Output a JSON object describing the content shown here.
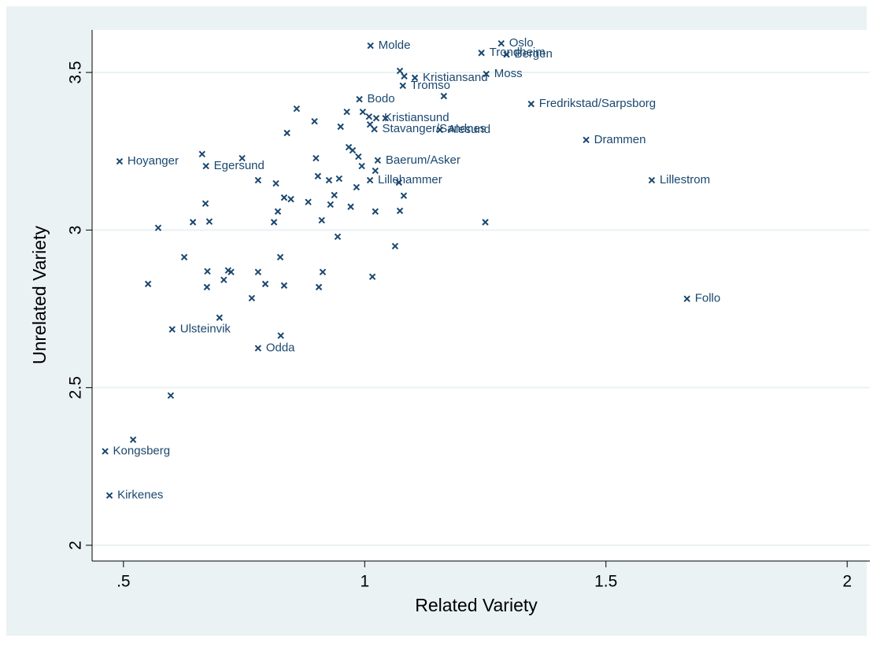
{
  "chart_data": {
    "type": "scatter",
    "x_label": "Related Variety",
    "y_label": "Unrelated Variety",
    "xlim": [
      0.435,
      2.047
    ],
    "ylim": [
      1.95,
      3.635
    ],
    "xticks": [
      {
        "value": 0.5,
        "label": ".5"
      },
      1,
      1.5,
      2
    ],
    "yticks": [
      2,
      2.5,
      3,
      3.5
    ],
    "grid": true,
    "color": "#1a476f",
    "x": [
      1.012,
      1.283,
      1.242,
      1.294,
      1.104,
      1.252,
      1.079,
      0.989,
      1.345,
      1.024,
      1.02,
      1.156,
      1.459,
      0.492,
      0.671,
      1.027,
      1.011,
      1.595,
      1.668,
      0.601,
      0.779,
      0.462,
      0.471,
      1.073,
      1.082,
      1.164,
      0.859,
      0.963,
      0.996,
      0.896,
      1.009,
      1.043,
      0.95,
      1.011,
      0.839,
      0.663,
      0.746,
      0.899,
      0.967,
      0.975,
      0.987,
      0.994,
      1.022,
      0.903,
      0.926,
      0.947,
      0.779,
      0.816,
      0.983,
      1.071,
      0.937,
      1.081,
      0.833,
      0.847,
      0.883,
      0.929,
      0.971,
      0.67,
      0.82,
      1.022,
      1.073,
      0.644,
      0.678,
      0.812,
      0.911,
      1.25,
      0.572,
      0.944,
      1.063,
      0.626,
      0.825,
      0.674,
      0.717,
      0.723,
      0.779,
      0.913,
      0.708,
      1.016,
      0.551,
      0.673,
      0.794,
      0.833,
      0.905,
      0.766,
      0.699,
      0.826,
      0.598,
      0.52
    ],
    "y": [
      3.585,
      3.592,
      3.562,
      3.557,
      3.483,
      3.495,
      3.458,
      3.415,
      3.4,
      3.355,
      3.32,
      3.318,
      3.286,
      3.218,
      3.203,
      3.221,
      3.158,
      3.158,
      2.782,
      2.685,
      2.625,
      2.298,
      2.158,
      3.505,
      3.488,
      3.425,
      3.385,
      3.375,
      3.375,
      3.345,
      3.36,
      3.355,
      3.328,
      3.335,
      3.308,
      3.241,
      3.228,
      3.228,
      3.263,
      3.253,
      3.233,
      3.203,
      3.188,
      3.171,
      3.158,
      3.163,
      3.158,
      3.148,
      3.136,
      3.151,
      3.111,
      3.109,
      3.103,
      3.098,
      3.089,
      3.081,
      3.074,
      3.084,
      3.059,
      3.059,
      3.061,
      3.025,
      3.027,
      3.025,
      3.031,
      3.025,
      3.007,
      2.979,
      2.949,
      2.914,
      2.914,
      2.869,
      2.872,
      2.867,
      2.867,
      2.867,
      2.842,
      2.852,
      2.829,
      2.819,
      2.829,
      2.824,
      2.819,
      2.784,
      2.722,
      2.665,
      2.475,
      2.335
    ],
    "labels": [
      "Molde",
      "Oslo",
      "Trondheim",
      "Bergen",
      "Kristiansand",
      "Moss",
      "Tromso",
      "Bodo",
      "Fredrikstad/Sarpsborg",
      "Kristiansund",
      "Stavanger/Sandnes",
      "Alesund",
      "Drammen",
      "Hoyanger",
      "Egersund",
      "Baerum/Asker",
      "Lillehammer",
      "Lillestrom",
      "Follo",
      "Ulsteinvik",
      "Odda",
      "Kongsberg",
      "Kirkenes",
      null,
      null,
      null,
      null,
      null,
      null,
      null,
      null,
      null,
      null,
      null,
      null,
      null,
      null,
      null,
      null,
      null,
      null,
      null,
      null,
      null,
      null,
      null,
      null,
      null,
      null,
      null,
      null,
      null,
      null,
      null,
      null,
      null,
      null,
      null,
      null,
      null,
      null,
      null,
      null,
      null,
      null,
      null,
      null,
      null,
      null,
      null,
      null,
      null,
      null,
      null,
      null,
      null,
      null,
      null,
      null,
      null,
      null,
      null,
      null,
      null
    ]
  }
}
